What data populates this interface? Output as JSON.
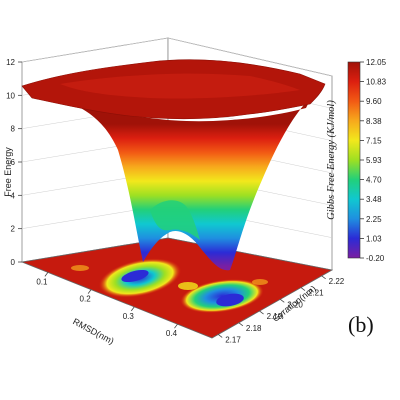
{
  "chart_data": {
    "type": "surface3d",
    "zlabel": "Free Energy",
    "xlabel": "RMSD(nm)",
    "ylabel": "Gyration(nm)",
    "colorbar_title": "Gibbs Free Energy  (KJ/mol)",
    "panel_label": "(b)",
    "zlim": [
      0,
      12
    ],
    "z_ticks": [
      "0",
      "2",
      "4",
      "6",
      "8",
      "10",
      "12"
    ],
    "x_ticks": [
      "0.1",
      "0.2",
      "0.3",
      "0.4"
    ],
    "y_ticks": [
      "2.17",
      "2.18",
      "2.19",
      "2.20",
      "2.21",
      "2.22"
    ],
    "colorbar_ticks": [
      "12.05",
      "10.83",
      "9.60",
      "8.38",
      "7.15",
      "5.93",
      "4.70",
      "3.48",
      "2.25",
      "1.03",
      "-0.20"
    ],
    "colorbar_range": [
      -0.2,
      12.05
    ],
    "colormap": [
      "#7a1fa2",
      "#2b2bd6",
      "#1f8fe0",
      "#10c8d0",
      "#22d07a",
      "#9ee022",
      "#f2e81c",
      "#f7a91c",
      "#f25a14",
      "#dc1f10",
      "#a01208"
    ],
    "minima": [
      {
        "rmsd": 0.22,
        "gyration": 2.205,
        "free_energy": 0.0
      },
      {
        "rmsd": 0.33,
        "gyration": 2.185,
        "free_energy": 0.3
      }
    ],
    "plateau_free_energy": 11.5
  }
}
